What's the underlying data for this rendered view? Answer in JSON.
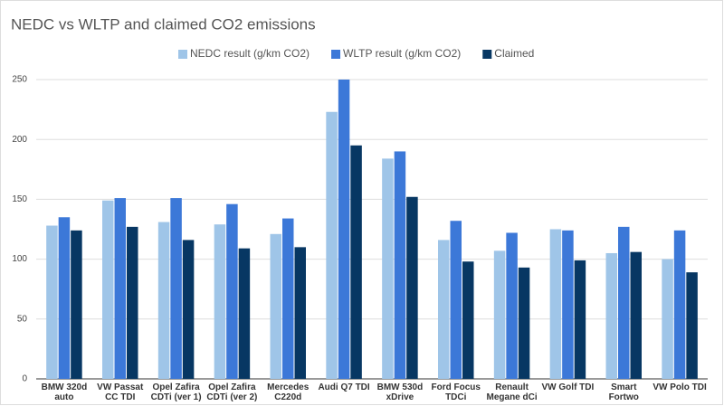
{
  "chart_data": {
    "type": "bar",
    "title": "NEDC vs WLTP and claimed CO2 emissions",
    "categories": [
      "BMW 320d auto",
      "VW Passat CC TDI",
      "Opel Zafira CDTi (ver 1)",
      "Opel Zafira CDTi (ver 2)",
      "Mercedes C220d",
      "Audi Q7 TDI",
      "BMW 530d xDrive",
      "Ford Focus TDCi",
      "Renault Megane dCi",
      "VW Golf TDI",
      "Smart Fortwo",
      "VW Polo TDI"
    ],
    "series": [
      {
        "name": "NEDC result (g/km CO2)",
        "color": "#9fc5e8",
        "values": [
          128,
          149,
          131,
          129,
          121,
          223,
          184,
          116,
          107,
          125,
          105,
          100
        ]
      },
      {
        "name": "WLTP result (g/km CO2)",
        "color": "#3c78d8",
        "values": [
          135,
          151,
          151,
          146,
          134,
          250,
          190,
          132,
          122,
          124,
          127,
          124
        ]
      },
      {
        "name": "Claimed",
        "color": "#073763",
        "values": [
          124,
          127,
          116,
          109,
          110,
          195,
          152,
          98,
          93,
          99,
          106,
          89
        ]
      }
    ],
    "ylim": [
      0,
      250
    ],
    "yticks": [
      0,
      50,
      100,
      150,
      200,
      250
    ],
    "grid": true,
    "legend": "top"
  }
}
